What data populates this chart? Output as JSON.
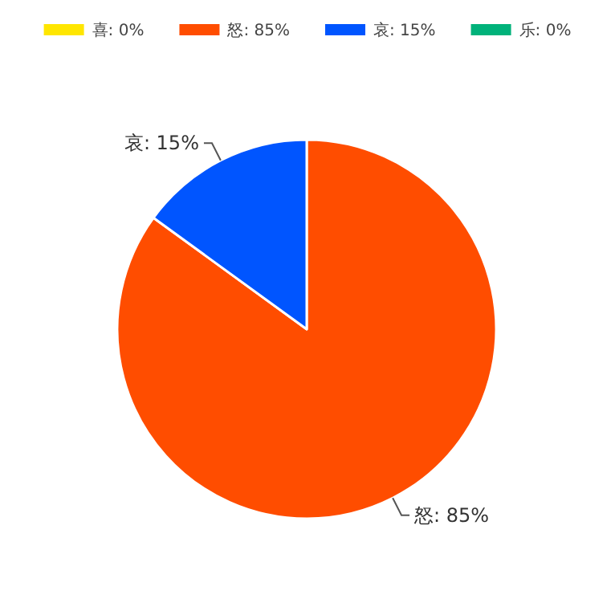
{
  "chart_data": {
    "type": "pie",
    "categories": [
      "喜: 0%",
      "怒: 85%",
      "哀: 15%",
      "乐: 0%"
    ],
    "values": [
      0,
      85,
      15,
      0
    ],
    "value_labels": [
      null,
      "怒: 85%",
      "哀: 15%",
      null
    ],
    "colors": [
      "#ffe600",
      "#ff4d00",
      "#0055ff",
      "#00b27a"
    ],
    "legend": "top"
  }
}
